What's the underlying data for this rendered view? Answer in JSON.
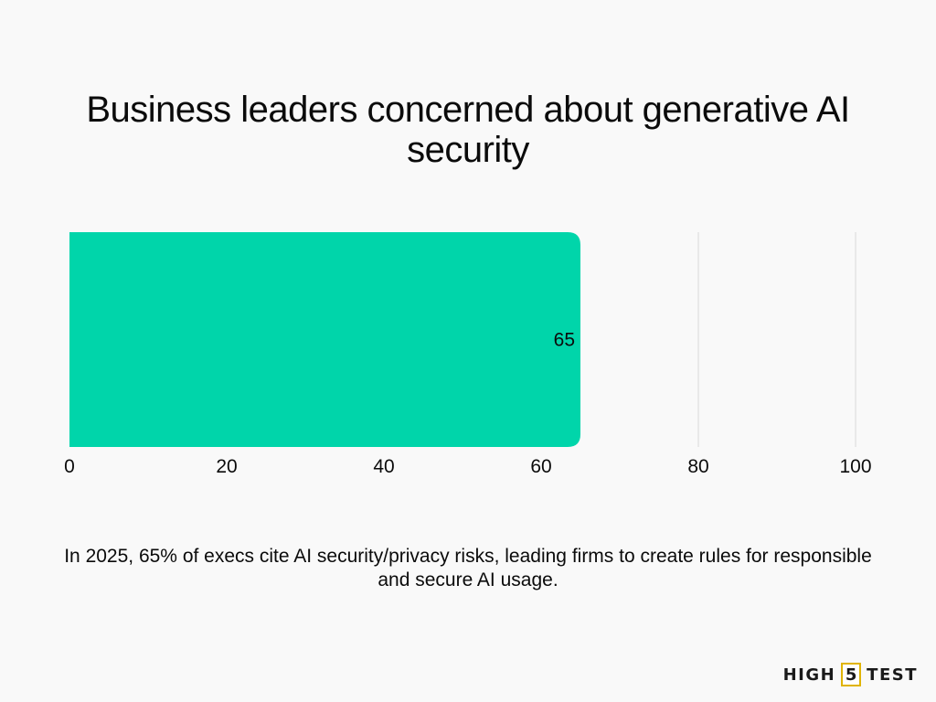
{
  "chart_data": {
    "type": "bar",
    "orientation": "horizontal",
    "title": "Business leaders concerned about generative AI security",
    "categories": [
      ""
    ],
    "values": [
      65
    ],
    "data_labels": [
      "65"
    ],
    "xlim": [
      0,
      100
    ],
    "x_ticks": [
      "0",
      "20",
      "40",
      "60",
      "80",
      "100"
    ],
    "grid": true,
    "bar_color": "#00d5aa",
    "grid_color": "#d9d9d9"
  },
  "caption": "In 2025, 65% of execs cite AI security/privacy risks, leading firms to create rules for responsible and secure AI usage.",
  "brand": {
    "left": "HIGH",
    "number": "5",
    "right": "TEST"
  }
}
